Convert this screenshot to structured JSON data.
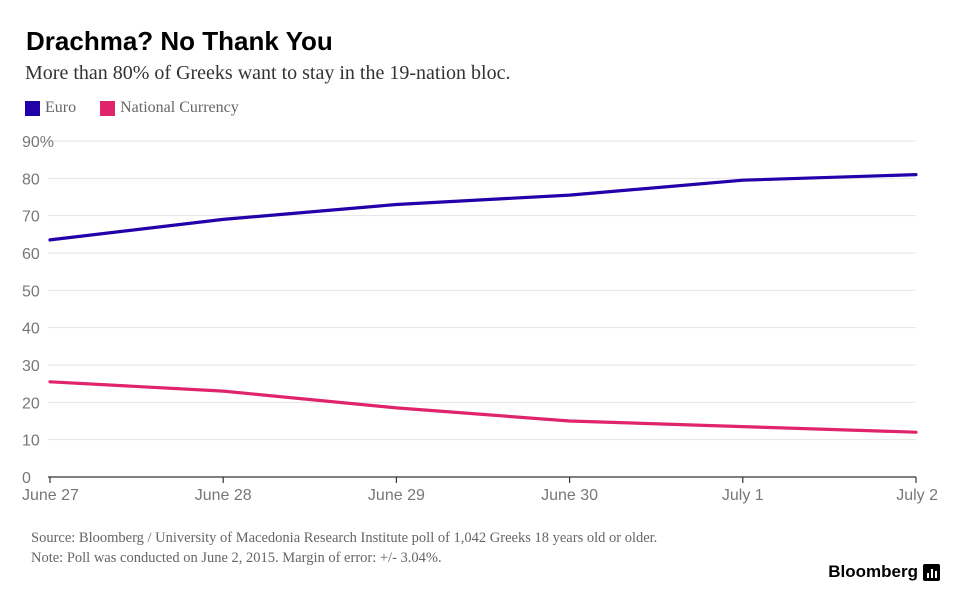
{
  "chart_data": {
    "type": "line",
    "title": "Drachma? No Thank You",
    "subtitle": "More than 80% of Greeks want to stay in the 19-nation bloc.",
    "categories": [
      "June 27",
      "June 28",
      "June 29",
      "June 30",
      "July 1",
      "July 2"
    ],
    "series": [
      {
        "name": "Euro",
        "color": "#2200aa",
        "values": [
          63.5,
          69,
          73,
          75.5,
          79.5,
          81
        ]
      },
      {
        "name": "National Currency",
        "color": "#e0246b",
        "values": [
          25.5,
          23,
          18.5,
          15,
          13.5,
          12
        ]
      }
    ],
    "ylim": [
      0,
      90
    ],
    "yticks": [
      "90%",
      "80",
      "70",
      "60",
      "50",
      "40",
      "30",
      "20",
      "10",
      "0"
    ],
    "ytick_values": [
      90,
      80,
      70,
      60,
      50,
      40,
      30,
      20,
      10,
      0
    ],
    "grid": true,
    "legend_placement": "top-left"
  },
  "footer": {
    "source": "Source: Bloomberg / University of Macedonia Research Institute poll of 1,042 Greeks 18 years old or older.",
    "note": "Note: Poll was conducted on June 2, 2015. Margin of error: +/- 3.04%."
  },
  "brand": {
    "name": "Bloomberg",
    "icon": "bloomberg-chart-icon"
  }
}
